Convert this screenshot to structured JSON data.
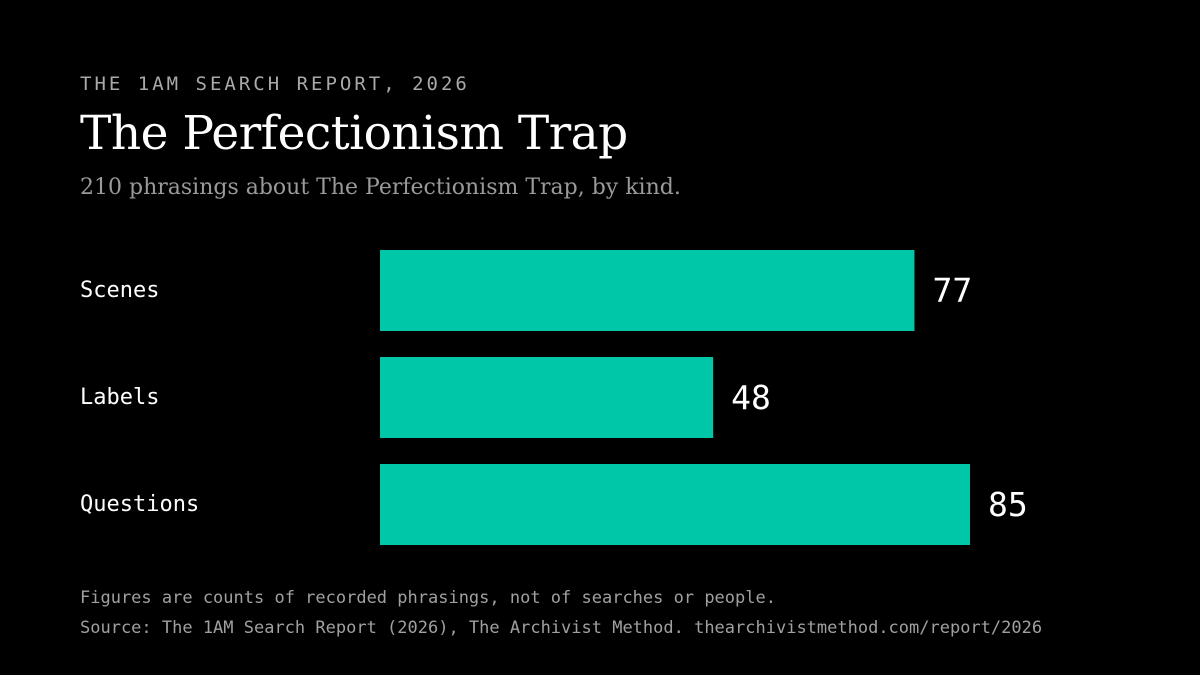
{
  "kicker": "THE 1AM SEARCH REPORT, 2026",
  "title": "The Perfectionism Trap",
  "subtitle": "210 phrasings about The Perfectionism Trap, by kind.",
  "footnote": "Figures are counts of recorded phrasings, not of searches or people.",
  "source": "Source: The 1AM Search Report (2026), The Archivist Method. thearchivistmethod.com/report/2026",
  "colors": {
    "background": "#000000",
    "bar": "#00c7a7",
    "label": "#ffffff",
    "muted": "#a0a0a0"
  },
  "chart_data": {
    "type": "bar",
    "orientation": "horizontal",
    "categories": [
      "Scenes",
      "Labels",
      "Questions"
    ],
    "values": [
      77,
      48,
      85
    ],
    "title": "The Perfectionism Trap",
    "xlabel": "",
    "ylabel": "",
    "xlim": [
      0,
      85
    ],
    "grid": false,
    "legend": "none",
    "data_labels": true
  }
}
